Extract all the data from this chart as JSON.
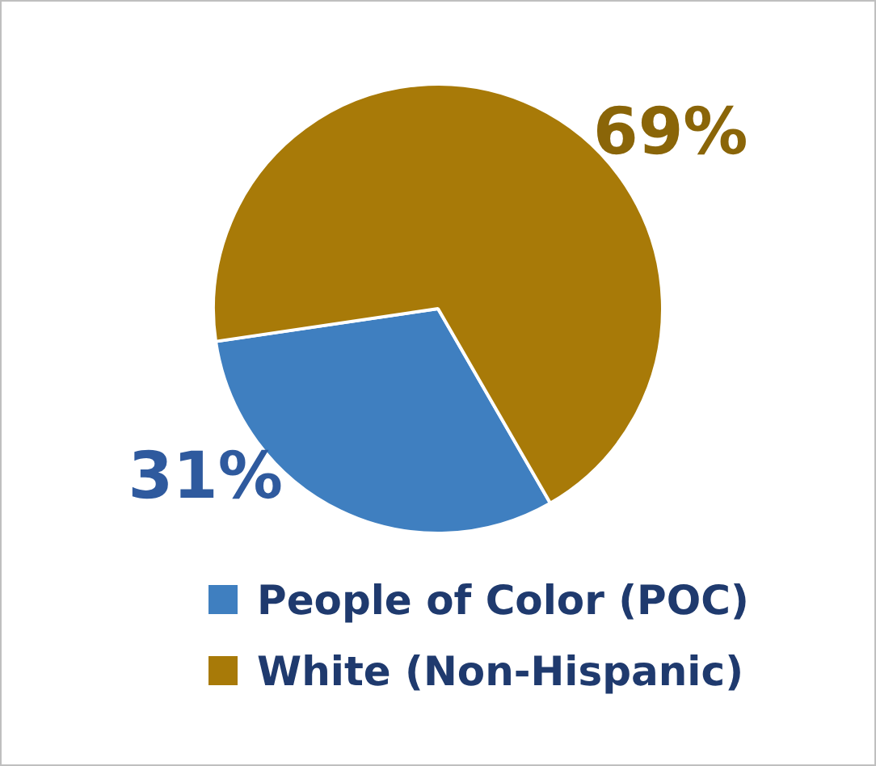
{
  "chart_data": {
    "type": "pie",
    "categories": [
      "People of Color (POC)",
      "White (Non-Hispanic)"
    ],
    "values": [
      31,
      69
    ],
    "colors": [
      "#3f7fc0",
      "#a87a08"
    ],
    "value_labels": [
      "31%",
      "69%"
    ],
    "legend": "bottom"
  }
}
